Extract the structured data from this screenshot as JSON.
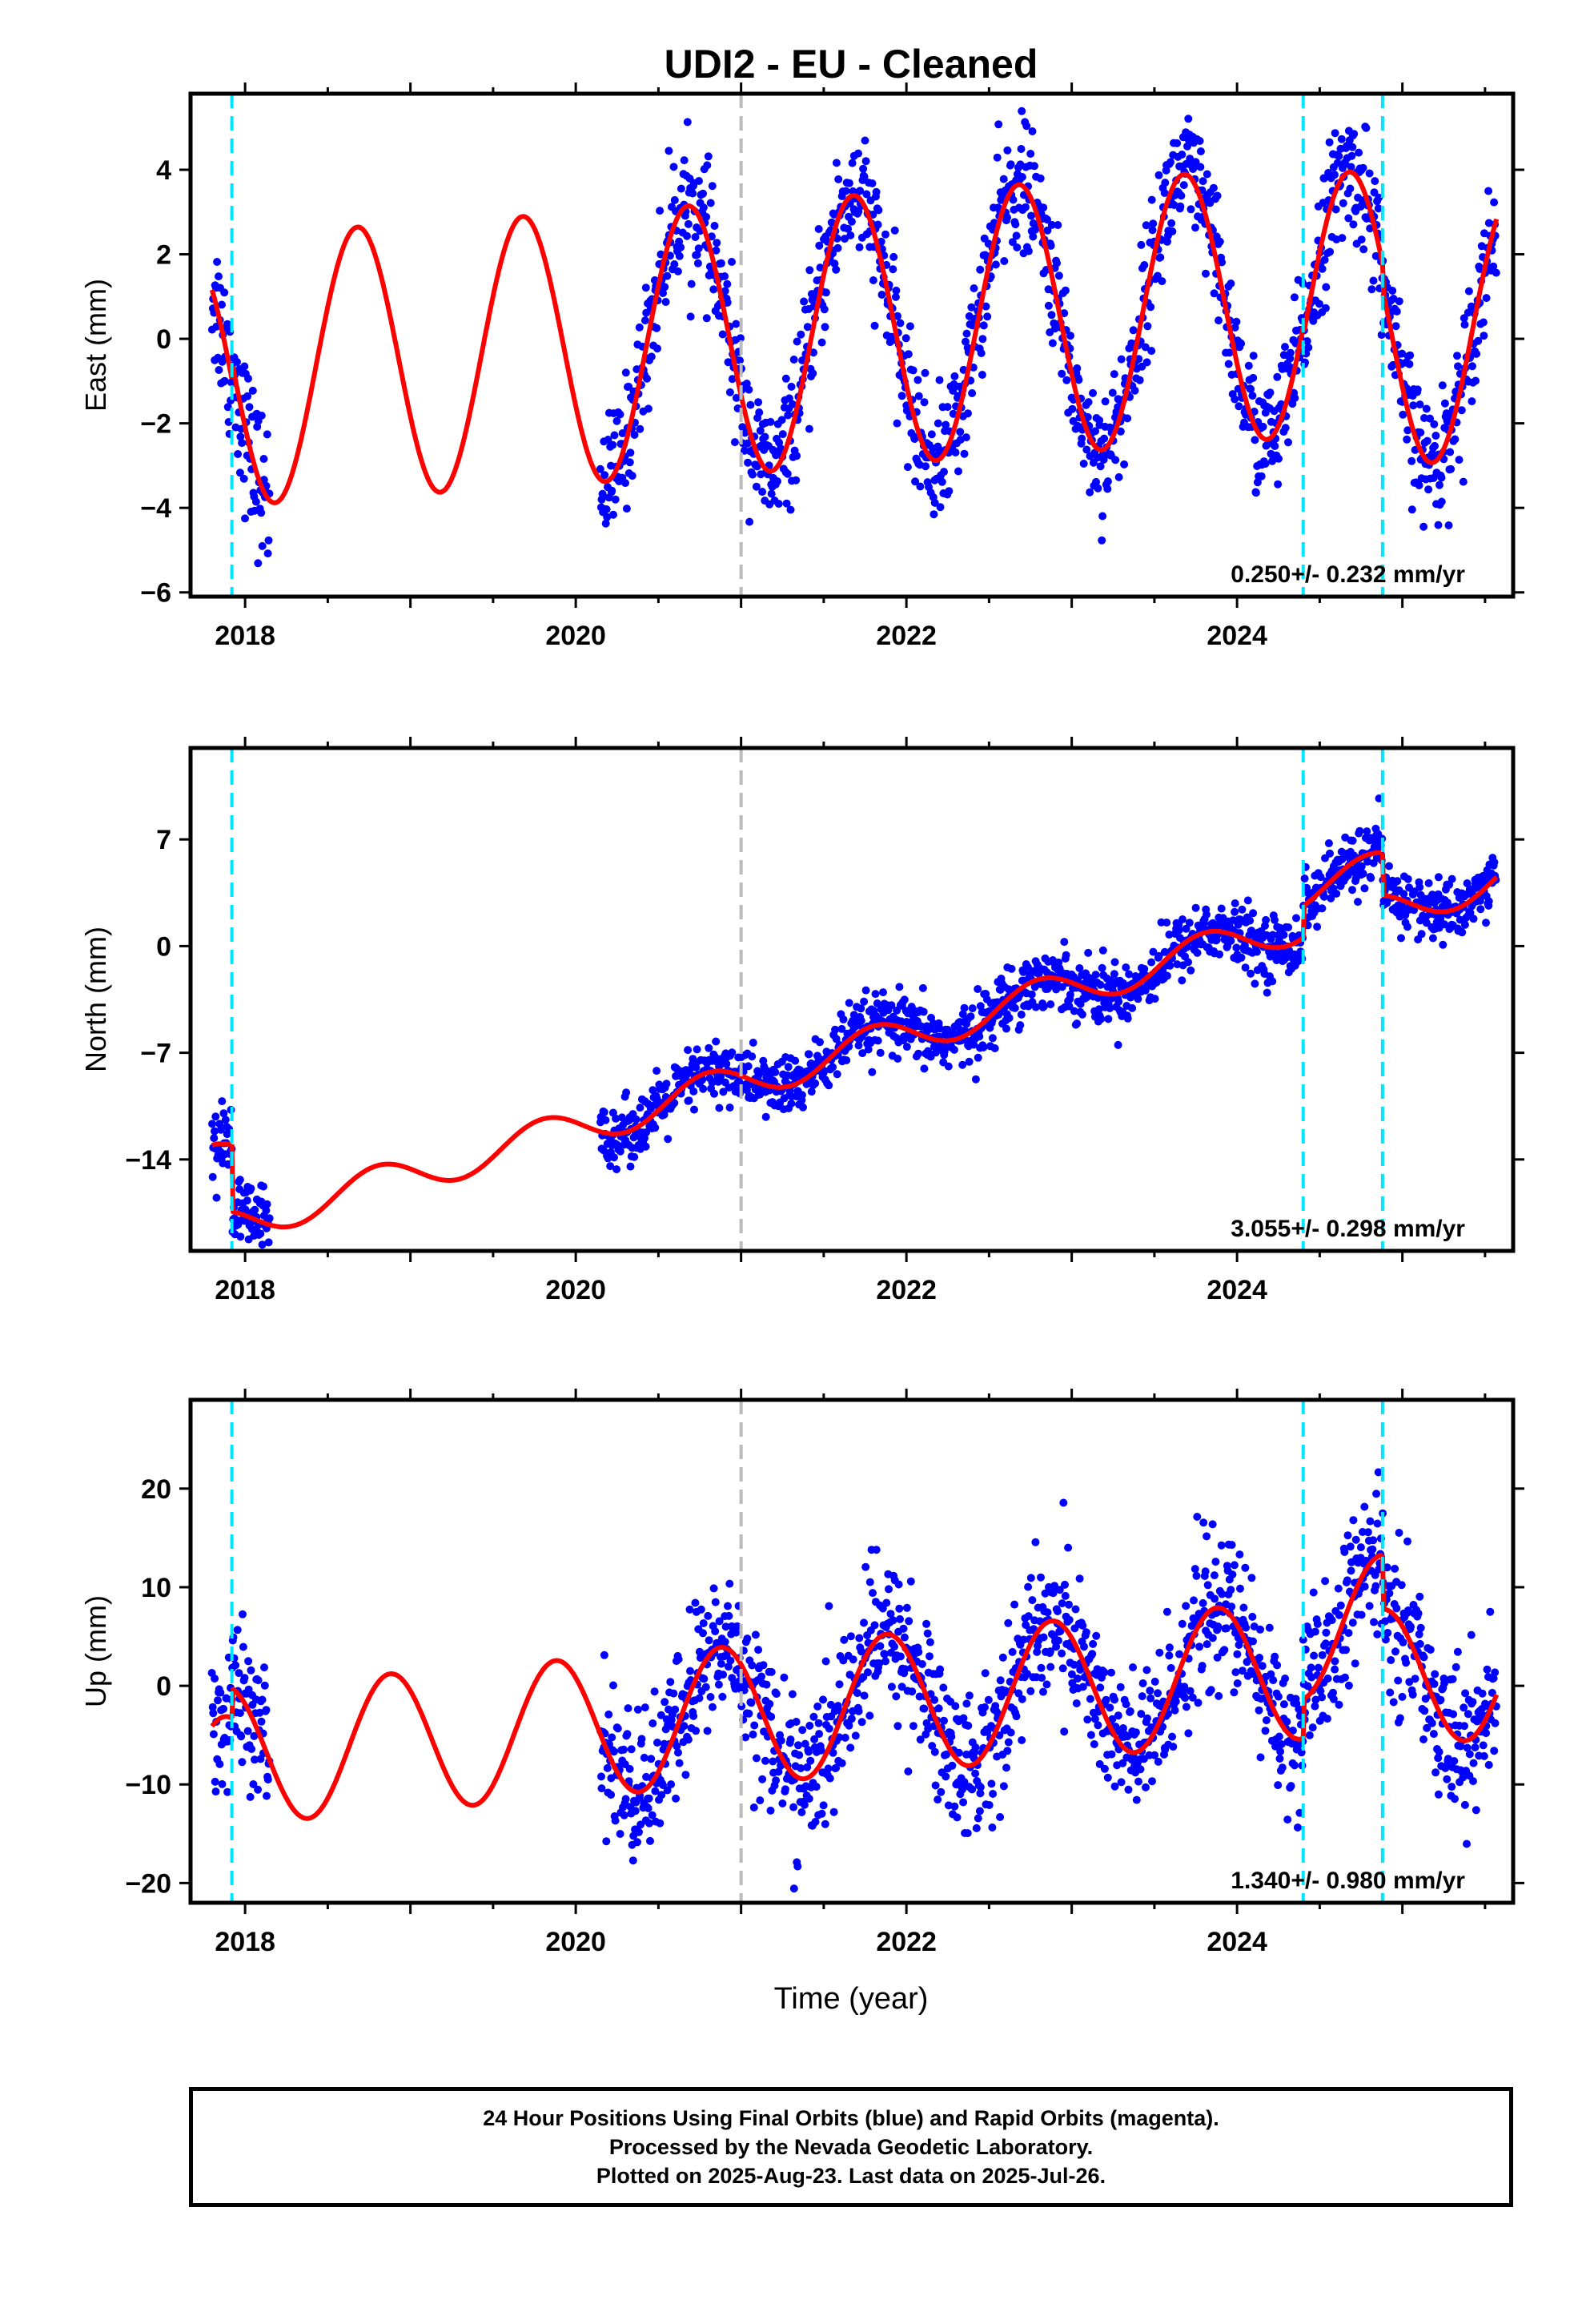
{
  "title": "UDI2  - EU - Cleaned",
  "xlabel": "Time (year)",
  "colors": {
    "points": "#0000ff",
    "model": "#ff0000",
    "offset_line": "#00e5ff",
    "gap_line": "#bbbbbb",
    "frame": "#000000"
  },
  "chart_data": [
    {
      "type": "scatter",
      "component": "East",
      "ylabel": "East (mm)",
      "xlim": [
        2017.67,
        2025.67
      ],
      "ylim": [
        -6.1,
        5.8
      ],
      "xticks": [
        "2018",
        "2020",
        "2022",
        "2024"
      ],
      "xtick_values": [
        2018,
        2020,
        2022,
        2024
      ],
      "yticks": [
        "−6",
        "−4",
        "−2",
        "0",
        "2",
        "4"
      ],
      "ytick_values": [
        -6,
        -4,
        -2,
        0,
        2,
        4
      ],
      "rate_text": "0.250+/- 0.232 mm/yr",
      "rate": 0.25,
      "offset_epochs": [
        2017.92,
        2024.4,
        2024.88
      ],
      "gap_epoch": 2021.0,
      "model": {
        "amplitude": 3.2,
        "phase": 0.43,
        "segments": [
          {
            "start": 2017.8,
            "end": 2017.92,
            "offset": -0.2
          },
          {
            "start": 2017.92,
            "end": 2024.4,
            "offset": 0.2
          },
          {
            "start": 2024.4,
            "end": 2024.88,
            "offset": 0.0
          },
          {
            "start": 2024.88,
            "end": 2025.57,
            "offset": -0.6
          }
        ]
      },
      "data_segments": [
        {
          "start": 2017.8,
          "end": 2018.15,
          "spread": 0.9
        },
        {
          "start": 2020.15,
          "end": 2025.57,
          "spread": 0.75
        }
      ]
    },
    {
      "type": "scatter",
      "component": "North",
      "ylabel": "North (mm)",
      "xlim": [
        2017.67,
        2025.67
      ],
      "ylim": [
        -20.0,
        13.0
      ],
      "xticks": [
        "2018",
        "2020",
        "2022",
        "2024"
      ],
      "xtick_values": [
        2018,
        2020,
        2022,
        2024
      ],
      "yticks": [
        "−14",
        "−7",
        "0",
        "7"
      ],
      "ytick_values": [
        -14,
        -7,
        0,
        7
      ],
      "rate_text": "3.055+/- 0.298 mm/yr",
      "rate": 3.055,
      "offset_epochs": [
        2017.92,
        2024.4,
        2024.88
      ],
      "gap_epoch": 2021.0,
      "model": {
        "amplitude": 1.2,
        "phase": 0.55,
        "segments": [
          {
            "start": 2017.8,
            "end": 2017.92,
            "offset": 1.8
          },
          {
            "start": 2017.92,
            "end": 2024.4,
            "offset": -2.6
          },
          {
            "start": 2024.4,
            "end": 2024.88,
            "offset": -0.5
          },
          {
            "start": 2024.88,
            "end": 2025.57,
            "offset": -3.3
          }
        ],
        "reference_epoch": 2022.5,
        "reference_value": -1.7
      },
      "data_segments": [
        {
          "start": 2017.8,
          "end": 2018.15,
          "spread": 1.2
        },
        {
          "start": 2020.15,
          "end": 2025.57,
          "spread": 1.0
        }
      ]
    },
    {
      "type": "scatter",
      "component": "Up",
      "ylabel": "Up (mm)",
      "xlim": [
        2017.67,
        2025.67
      ],
      "ylim": [
        -22.0,
        29.0
      ],
      "xticks": [
        "2018",
        "2020",
        "2022",
        "2024"
      ],
      "xtick_values": [
        2018,
        2020,
        2022,
        2024
      ],
      "yticks": [
        "−20",
        "−10",
        "0",
        "10",
        "20"
      ],
      "ytick_values": [
        -20,
        -10,
        0,
        10,
        20
      ],
      "rate_text": "1.340+/- 0.980 mm/yr",
      "rate": 1.34,
      "offset_epochs": [
        2017.92,
        2024.4,
        2024.88
      ],
      "gap_epoch": 2021.0,
      "model": {
        "amplitude": 7.0,
        "phase": 0.63,
        "segments": [
          {
            "start": 2017.8,
            "end": 2017.92,
            "offset": -5.0
          },
          {
            "start": 2017.92,
            "end": 2024.4,
            "offset": -2.0
          },
          {
            "start": 2024.4,
            "end": 2024.88,
            "offset": 2.0
          },
          {
            "start": 2024.88,
            "end": 2025.57,
            "offset": -3.5
          }
        ]
      },
      "data_segments": [
        {
          "start": 2017.8,
          "end": 2018.15,
          "spread": 3.5
        },
        {
          "start": 2020.15,
          "end": 2025.57,
          "spread": 3.8
        }
      ]
    }
  ],
  "footer": {
    "line1": "24 Hour Positions Using Final Orbits (blue) and Rapid Orbits (magenta).",
    "line2": "Processed by the Nevada Geodetic Laboratory.",
    "line3": "Plotted on 2025-Aug-23. Last data on 2025-Jul-26."
  }
}
